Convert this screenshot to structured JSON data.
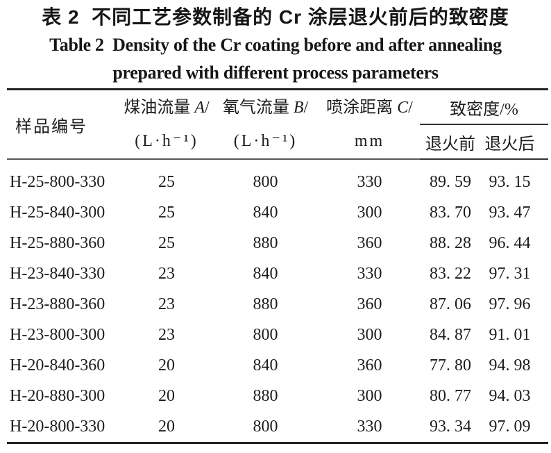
{
  "title": {
    "zh": "表 2  不同工艺参数制备的 Cr 涂层退火前后的致密度",
    "en_line1": "Table 2  Density of the Cr coating before and after annealing",
    "en_line2": "prepared with different process parameters"
  },
  "table": {
    "header": {
      "sample": "样品编号",
      "kerosene_label": "煤油流量",
      "kerosene_symbol": "A",
      "oxygen_label": "氧气流量",
      "oxygen_symbol": "B",
      "distance_label": "喷涂距离",
      "distance_symbol": "C",
      "slash": "/",
      "flow_unit": "(L·h⁻¹)",
      "distance_unit": "mm",
      "density_group": "致密度/%",
      "density_before": "退火前",
      "density_after": "退火后"
    },
    "rows": [
      {
        "sample": "H-25-800-330",
        "kerosene": "25",
        "oxygen": "800",
        "distance": "330",
        "before": "89. 59",
        "after": "93. 15"
      },
      {
        "sample": "H-25-840-300",
        "kerosene": "25",
        "oxygen": "840",
        "distance": "300",
        "before": "83. 70",
        "after": "93. 47"
      },
      {
        "sample": "H-25-880-360",
        "kerosene": "25",
        "oxygen": "880",
        "distance": "360",
        "before": "88. 28",
        "after": "96. 44"
      },
      {
        "sample": "H-23-840-330",
        "kerosene": "23",
        "oxygen": "840",
        "distance": "330",
        "before": "83. 22",
        "after": "97. 31"
      },
      {
        "sample": "H-23-880-360",
        "kerosene": "23",
        "oxygen": "880",
        "distance": "360",
        "before": "87. 06",
        "after": "97. 96"
      },
      {
        "sample": "H-23-800-300",
        "kerosene": "23",
        "oxygen": "800",
        "distance": "300",
        "before": "84. 87",
        "after": "91. 01"
      },
      {
        "sample": "H-20-840-360",
        "kerosene": "20",
        "oxygen": "840",
        "distance": "360",
        "before": "77. 80",
        "after": "94. 98"
      },
      {
        "sample": "H-20-880-300",
        "kerosene": "20",
        "oxygen": "880",
        "distance": "300",
        "before": "80. 77",
        "after": "94. 03"
      },
      {
        "sample": "H-20-800-330",
        "kerosene": "20",
        "oxygen": "800",
        "distance": "330",
        "before": "93. 34",
        "after": "97. 09"
      }
    ]
  }
}
